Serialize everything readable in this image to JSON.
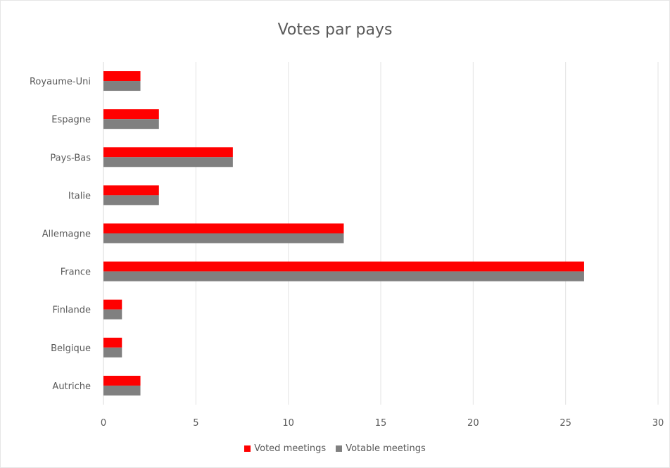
{
  "chart_data": {
    "type": "bar",
    "orientation": "horizontal",
    "title": "Votes par pays",
    "categories": [
      "Royaume-Uni",
      "Espagne",
      "Pays-Bas",
      "Italie",
      "Allemagne",
      "France",
      "Finlande",
      "Belgique",
      "Autriche"
    ],
    "series": [
      {
        "name": "Voted meetings",
        "color": "#ff0000",
        "values": [
          2,
          3,
          7,
          3,
          13,
          26,
          1,
          1,
          2
        ]
      },
      {
        "name": "Votable meetings",
        "color": "#808080",
        "values": [
          2,
          3,
          7,
          3,
          13,
          26,
          1,
          1,
          2
        ]
      }
    ],
    "xlim": [
      0,
      30
    ],
    "xticks": [
      0,
      5,
      10,
      15,
      20,
      25,
      30
    ],
    "grid": "vertical",
    "legend": "bottom"
  }
}
